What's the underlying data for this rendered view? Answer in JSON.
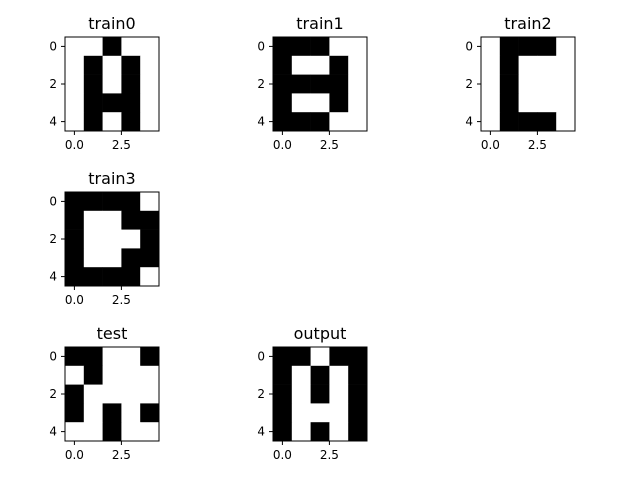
{
  "chart_data": [
    {
      "type": "heatmap",
      "title": "train0",
      "colors": {
        "1": "#000000",
        "0": "#ffffff"
      },
      "xticks": [
        "0.0",
        "2.5"
      ],
      "yticks": [
        "0",
        "2",
        "4"
      ],
      "grid": [
        [
          0,
          0,
          1,
          0,
          0
        ],
        [
          0,
          1,
          0,
          1,
          0
        ],
        [
          0,
          1,
          0,
          1,
          0
        ],
        [
          0,
          1,
          1,
          1,
          0
        ],
        [
          0,
          1,
          0,
          1,
          0
        ]
      ]
    },
    {
      "type": "heatmap",
      "title": "train1",
      "colors": {
        "1": "#000000",
        "0": "#ffffff"
      },
      "xticks": [
        "0.0",
        "2.5"
      ],
      "yticks": [
        "0",
        "2",
        "4"
      ],
      "grid": [
        [
          1,
          1,
          1,
          0,
          0
        ],
        [
          1,
          0,
          0,
          1,
          0
        ],
        [
          1,
          1,
          1,
          1,
          0
        ],
        [
          1,
          0,
          0,
          1,
          0
        ],
        [
          1,
          1,
          1,
          0,
          0
        ]
      ]
    },
    {
      "type": "heatmap",
      "title": "train2",
      "colors": {
        "1": "#000000",
        "0": "#ffffff"
      },
      "xticks": [
        "0.0",
        "2.5"
      ],
      "yticks": [
        "0",
        "2",
        "4"
      ],
      "grid": [
        [
          0,
          1,
          1,
          1,
          0
        ],
        [
          0,
          1,
          0,
          0,
          0
        ],
        [
          0,
          1,
          0,
          0,
          0
        ],
        [
          0,
          1,
          0,
          0,
          0
        ],
        [
          0,
          1,
          1,
          1,
          0
        ]
      ]
    },
    {
      "type": "heatmap",
      "title": "train3",
      "colors": {
        "1": "#000000",
        "0": "#ffffff"
      },
      "xticks": [
        "0.0",
        "2.5"
      ],
      "yticks": [
        "0",
        "2",
        "4"
      ],
      "grid": [
        [
          1,
          1,
          1,
          1,
          0
        ],
        [
          1,
          0,
          0,
          1,
          1
        ],
        [
          1,
          0,
          0,
          0,
          1
        ],
        [
          1,
          0,
          0,
          1,
          1
        ],
        [
          1,
          1,
          1,
          1,
          0
        ]
      ]
    },
    {
      "type": "heatmap",
      "title": "test",
      "colors": {
        "1": "#000000",
        "0": "#ffffff"
      },
      "xticks": [
        "0.0",
        "2.5"
      ],
      "yticks": [
        "0",
        "2",
        "4"
      ],
      "grid": [
        [
          1,
          1,
          0,
          0,
          1
        ],
        [
          0,
          1,
          0,
          0,
          0
        ],
        [
          1,
          0,
          0,
          0,
          0
        ],
        [
          1,
          0,
          1,
          0,
          1
        ],
        [
          0,
          0,
          1,
          0,
          0
        ]
      ]
    },
    {
      "type": "heatmap",
      "title": "output",
      "colors": {
        "1": "#000000",
        "0": "#ffffff"
      },
      "xticks": [
        "0.0",
        "2.5"
      ],
      "yticks": [
        "0",
        "2",
        "4"
      ],
      "grid": [
        [
          1,
          1,
          0,
          1,
          1
        ],
        [
          1,
          0,
          1,
          0,
          1
        ],
        [
          1,
          0,
          1,
          0,
          1
        ],
        [
          1,
          0,
          0,
          0,
          1
        ],
        [
          1,
          0,
          1,
          0,
          1
        ]
      ]
    }
  ]
}
